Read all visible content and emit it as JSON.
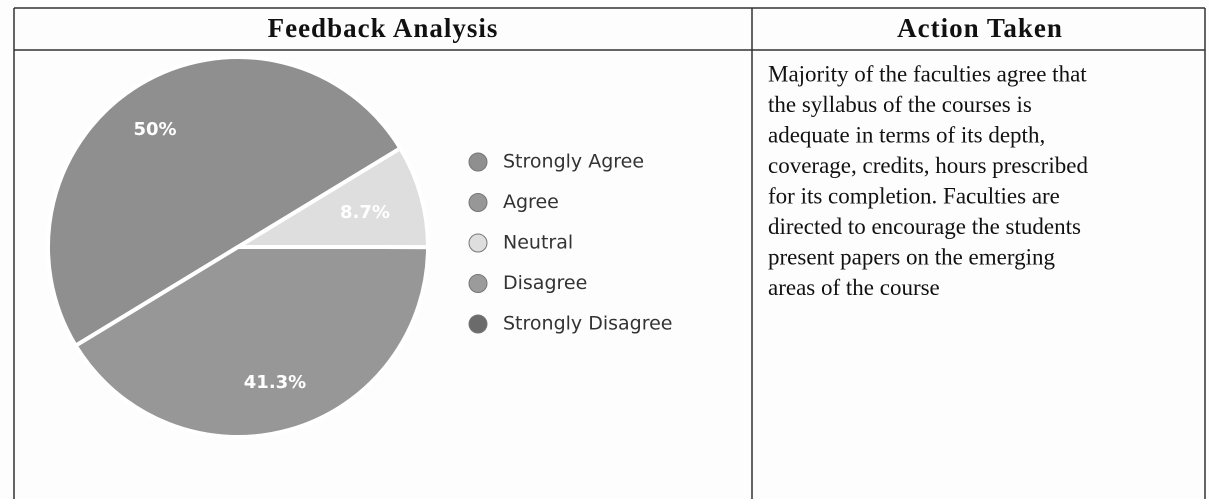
{
  "table": {
    "headers": [
      "Feedback Analysis",
      "Action Taken"
    ],
    "action_lines": [
      "Majority of the faculties agree that",
      "the syllabus of the courses is",
      "adequate in terms of its depth,",
      "coverage, credits, hours prescribed",
      "for its completion. Faculties are",
      "directed to encourage the students",
      "present papers on the emerging",
      "areas of the course"
    ]
  },
  "chart_data": {
    "type": "pie",
    "categories": [
      "Strongly Agree",
      "Agree",
      "Neutral",
      "Disagree",
      "Strongly Disagree"
    ],
    "values": [
      50,
      41.3,
      8.7,
      0,
      0
    ],
    "value_labels": [
      "50%",
      "41.3%",
      "8.7%",
      null,
      null
    ],
    "colors": [
      "#8f8f8f",
      "#979797",
      "#dedede",
      "#9b9b9b",
      "#6b6b6b"
    ]
  }
}
